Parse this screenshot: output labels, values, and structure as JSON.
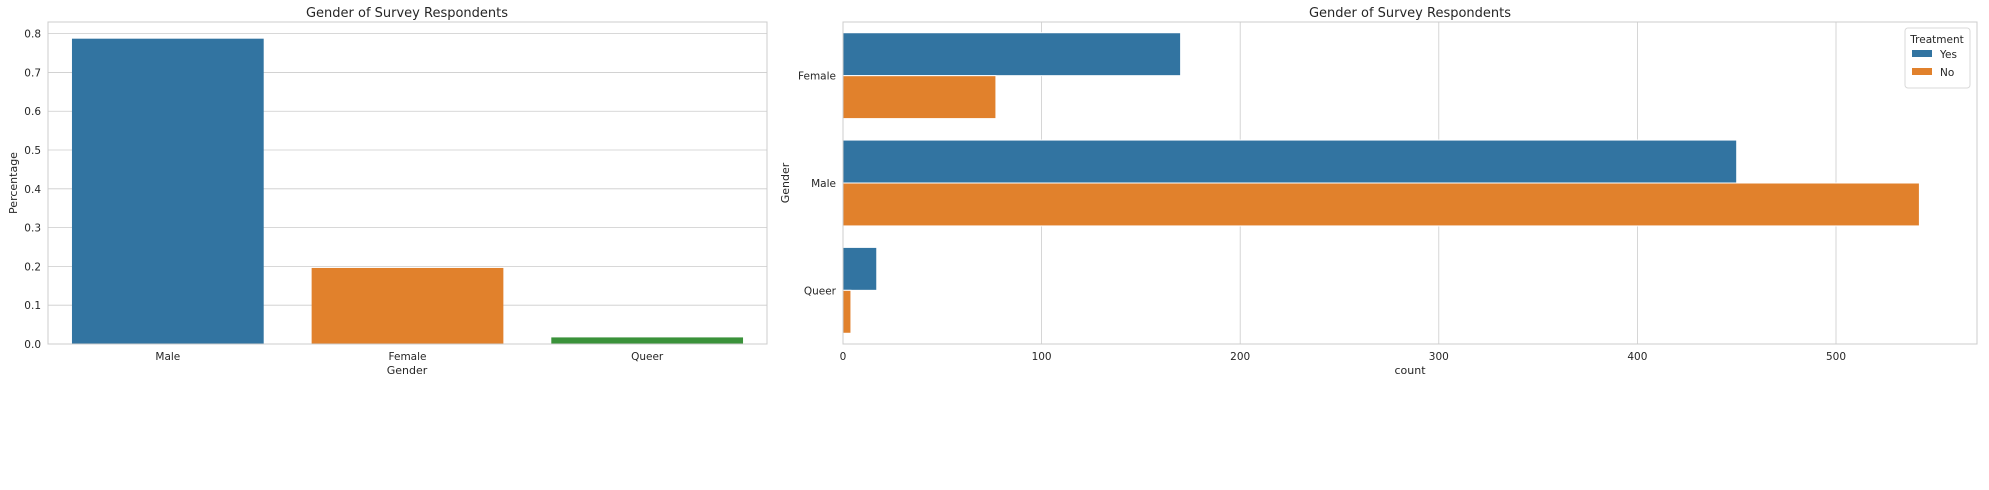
{
  "chart_data": [
    {
      "type": "bar",
      "title": "Gender of Survey Respondents",
      "xlabel": "Gender",
      "ylabel": "Percentage",
      "categories": [
        "Male",
        "Female",
        "Queer"
      ],
      "values": [
        0.787,
        0.196,
        0.017
      ],
      "colors": [
        "#3274a1",
        "#e1812c",
        "#3a923a"
      ],
      "ylim": [
        0,
        0.83
      ],
      "yticks": [
        0.0,
        0.1,
        0.2,
        0.3,
        0.4,
        0.5,
        0.6,
        0.7,
        0.8
      ],
      "ytick_labels": [
        "0.0",
        "0.1",
        "0.2",
        "0.3",
        "0.4",
        "0.5",
        "0.6",
        "0.7",
        "0.8"
      ],
      "grid": true
    },
    {
      "type": "bar",
      "orientation": "horizontal",
      "title": "Gender of Survey Respondents",
      "xlabel": "count",
      "ylabel": "Gender",
      "categories": [
        "Female",
        "Male",
        "Queer"
      ],
      "series": [
        {
          "name": "Yes",
          "color": "#3274a1",
          "values": [
            170,
            450,
            17
          ]
        },
        {
          "name": "No",
          "color": "#e1812c",
          "values": [
            77,
            542,
            4
          ]
        }
      ],
      "xlim": [
        0,
        571
      ],
      "xticks": [
        0,
        100,
        200,
        300,
        400,
        500
      ],
      "xtick_labels": [
        "0",
        "100",
        "200",
        "300",
        "400",
        "500"
      ],
      "legend": {
        "title": "Treatment",
        "placement": "top-right"
      },
      "grid": true
    }
  ]
}
